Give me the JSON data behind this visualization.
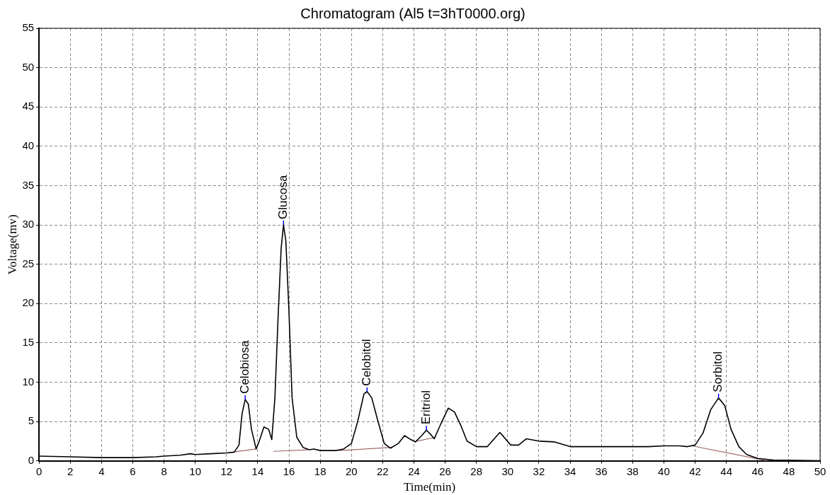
{
  "chart_data": {
    "type": "line",
    "title": "Chromatogram (Al5 t=3hT0000.org)",
    "xlabel": "Time(min)",
    "ylabel": "Voltage(mv)",
    "xlim": [
      0,
      50
    ],
    "xticks": [
      0,
      2,
      4,
      6,
      8,
      10,
      12,
      14,
      16,
      18,
      20,
      22,
      24,
      26,
      28,
      30,
      32,
      34,
      36,
      38,
      40,
      42,
      44,
      46,
      48,
      50
    ],
    "ylim": [
      0,
      55
    ],
    "yticks": [
      0,
      5,
      10,
      15,
      20,
      25,
      30,
      35,
      40,
      45,
      50,
      55
    ],
    "grid": true,
    "legend": false,
    "marker": "none",
    "line_style": "solid",
    "series": [
      {
        "color": "#000000",
        "x": [
          0,
          2,
          4,
          6,
          7.5,
          8,
          9,
          9.7,
          10,
          11,
          12,
          12.5,
          12.8,
          13.0,
          13.2,
          13.4,
          13.6,
          13.9,
          14.1,
          14.4,
          14.7,
          14.9,
          15.1,
          15.3,
          15.5,
          15.65,
          15.8,
          16.0,
          16.2,
          16.5,
          16.9,
          17.3,
          17.6,
          18,
          19,
          19.5,
          20,
          20.4,
          20.8,
          21.0,
          21.3,
          21.7,
          22.1,
          22.5,
          23,
          23.4,
          23.8,
          24.1,
          24.5,
          24.8,
          25.1,
          25.3,
          25.7,
          26.2,
          26.6,
          27,
          27.4,
          28,
          28.7,
          29.5,
          30.2,
          30.7,
          31.2,
          32,
          33,
          34,
          36,
          38,
          39,
          40,
          41,
          41.5,
          42,
          42.5,
          43,
          43.5,
          43.9,
          44.3,
          44.8,
          45.3,
          46,
          47,
          50
        ],
        "values": [
          0.6,
          0.5,
          0.4,
          0.4,
          0.5,
          0.6,
          0.7,
          0.9,
          0.8,
          0.9,
          1.0,
          1.1,
          2,
          6,
          7.8,
          7.2,
          4,
          1.5,
          2.5,
          4.3,
          4,
          2.7,
          8,
          18,
          27,
          30,
          28,
          19,
          8,
          3,
          1.7,
          1.4,
          1.5,
          1.3,
          1.3,
          1.5,
          2.2,
          5,
          8.5,
          8.8,
          8,
          5,
          2.2,
          1.6,
          2.2,
          3.2,
          2.7,
          2.4,
          3.2,
          3.9,
          3.3,
          2.8,
          4.6,
          6.7,
          6.2,
          4.5,
          2.5,
          1.8,
          1.8,
          3.6,
          2.0,
          2.0,
          2.8,
          2.5,
          2.4,
          1.8,
          1.8,
          1.8,
          1.8,
          1.9,
          1.9,
          1.8,
          2.0,
          3.5,
          6.5,
          8.0,
          7,
          4,
          1.8,
          0.8,
          0.3,
          0.1,
          0
        ]
      },
      {
        "color": "#a06a6a",
        "x": [
          12.4,
          13.9
        ],
        "values": [
          1.1,
          1.5
        ]
      },
      {
        "color": "#a06a6a",
        "x": [
          15.0,
          17.2
        ],
        "values": [
          1.2,
          1.4
        ]
      },
      {
        "color": "#a06a6a",
        "x": [
          19.2,
          22.6
        ],
        "values": [
          1.3,
          1.7
        ]
      },
      {
        "color": "#a06a6a",
        "x": [
          24.2,
          25.4
        ],
        "values": [
          2.5,
          3.0
        ]
      },
      {
        "color": "#a06a6a",
        "x": [
          41.8,
          46.6
        ],
        "values": [
          1.9,
          0
        ]
      }
    ],
    "annotations": [
      {
        "text": "Celobiosa",
        "x": 13.2,
        "y": 7.8
      },
      {
        "text": "Glucosa",
        "x": 15.65,
        "y": 30
      },
      {
        "text": "Celobitol",
        "x": 21.0,
        "y": 8.8
      },
      {
        "text": "Eritriol",
        "x": 24.8,
        "y": 3.9
      },
      {
        "text": "Sorbitol",
        "x": 43.5,
        "y": 8.0
      }
    ]
  }
}
